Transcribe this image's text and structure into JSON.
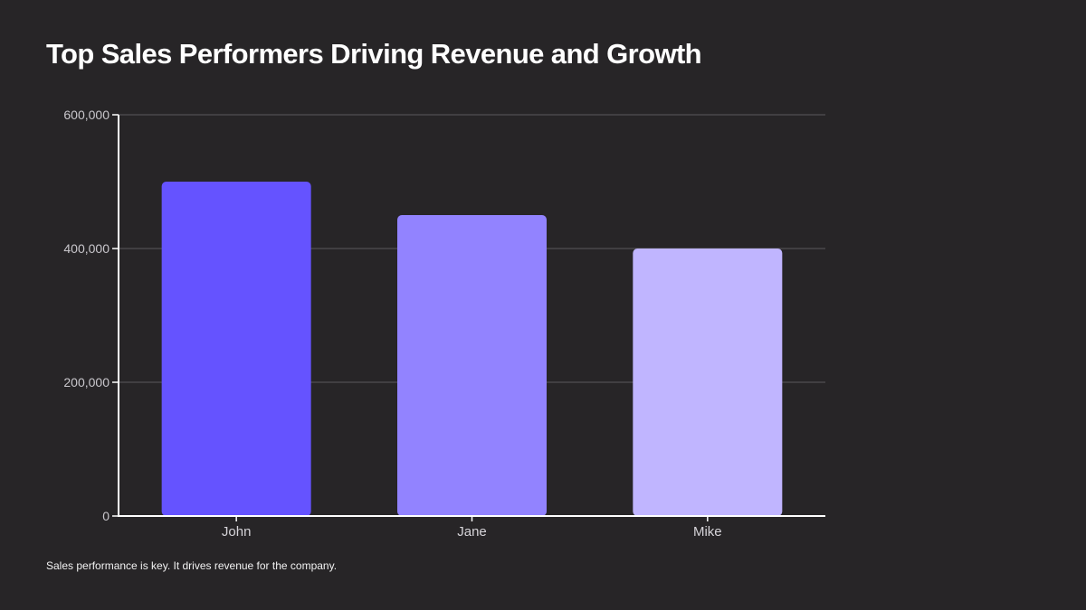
{
  "slide": {
    "title": "Top Sales Performers Driving Revenue and Growth",
    "footnote": "Sales performance is key. It drives revenue for the company."
  },
  "chart_data": {
    "type": "bar",
    "categories": [
      "John",
      "Jane",
      "Mike"
    ],
    "values": [
      500000,
      450000,
      400000
    ],
    "bar_colors": [
      "#6553ff",
      "#9283ff",
      "#c0b5ff"
    ],
    "ylim": [
      0,
      600000
    ],
    "yticks": [
      0,
      200000,
      400000,
      600000
    ],
    "ytick_labels": [
      "0",
      "200,000",
      "400,000",
      "600,000"
    ],
    "grid": true,
    "legend": "none",
    "xlabel": "",
    "ylabel": "",
    "axis_color": "#ffffff",
    "grid_color": "#4a484c"
  }
}
